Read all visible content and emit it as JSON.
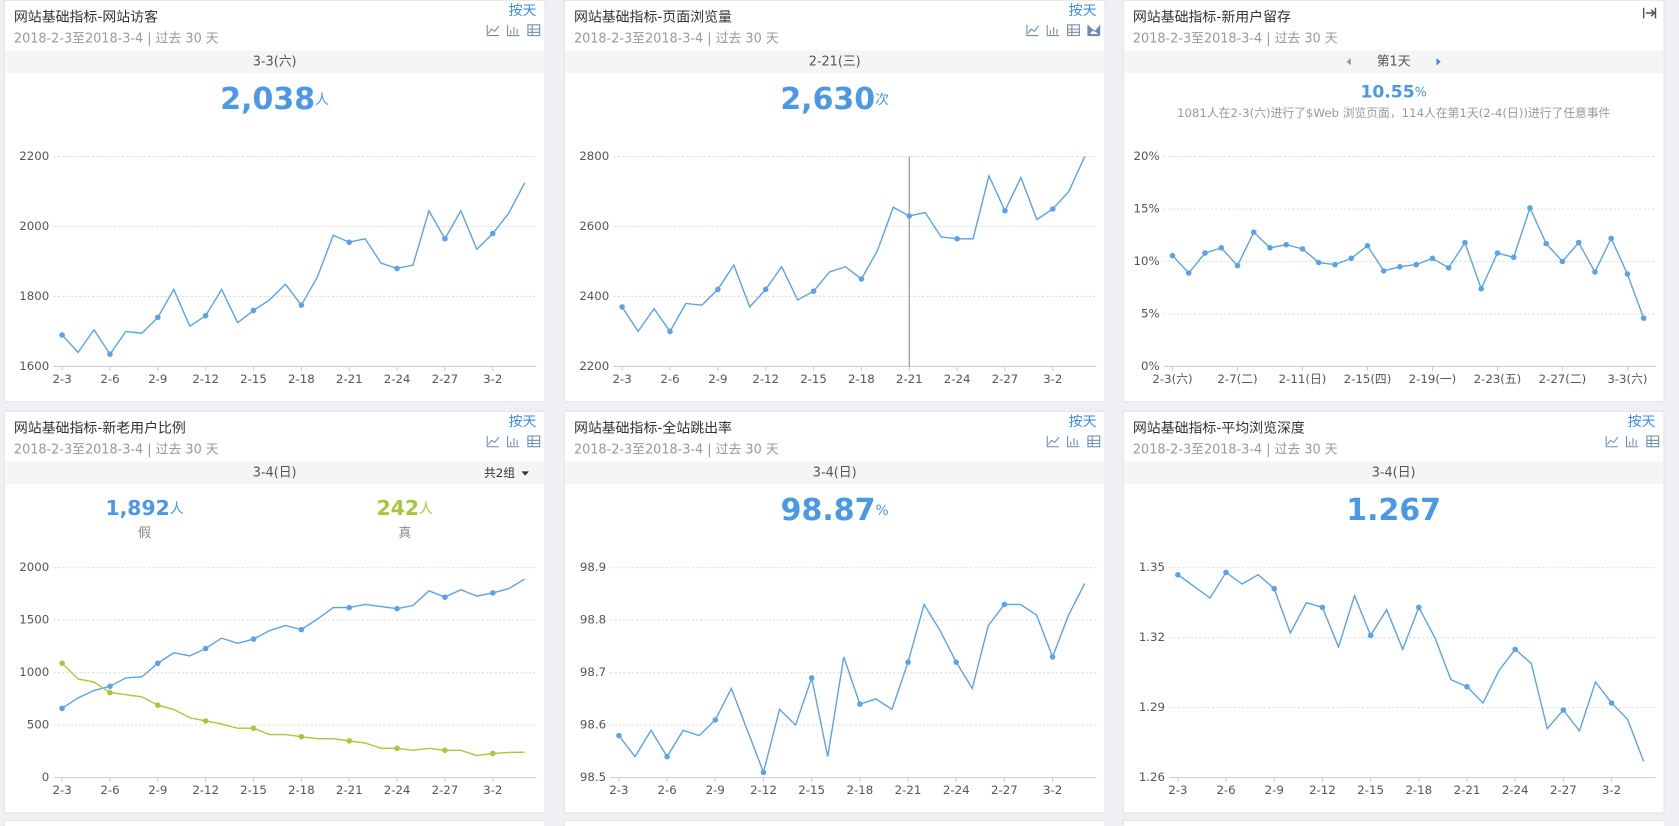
{
  "chart_data": [
    {
      "type": "line",
      "title": "网站基础指标-网站访客",
      "subtitle": "2018-2-3至2018-3-4 | 过去 30 天",
      "link": "按天",
      "header": "3-3(六)",
      "highlights": [
        {
          "value": "2,038",
          "unit": "人"
        }
      ],
      "categories": [
        "2-3",
        null,
        null,
        "2-6",
        null,
        null,
        "2-9",
        null,
        null,
        "2-12",
        null,
        null,
        "2-15",
        null,
        null,
        "2-18",
        null,
        null,
        "2-21",
        null,
        null,
        "2-24",
        null,
        null,
        "2-27",
        null,
        null,
        "3-2",
        null,
        null
      ],
      "series": [
        {
          "color": "#5ba3e8",
          "values": [
            1690,
            1640,
            1705,
            1635,
            1700,
            1695,
            1740,
            1820,
            1715,
            1745,
            1820,
            1725,
            1760,
            1790,
            1835,
            1775,
            1855,
            1975,
            1955,
            1965,
            1895,
            1880,
            1890,
            2045,
            1965,
            2045,
            1935,
            1980,
            2038,
            2125
          ]
        }
      ],
      "ylim": [
        1600,
        2200
      ],
      "yticks": [
        1600,
        1800,
        2000,
        2200
      ],
      "grid": true
    },
    {
      "type": "line",
      "title": "网站基础指标-页面浏览量",
      "subtitle": "2018-2-3至2018-3-4 | 过去 30 天",
      "link": "按天",
      "header": "2-21(三)",
      "highlights": [
        {
          "value": "2,630",
          "unit": "次"
        }
      ],
      "categories": [
        "2-3",
        null,
        null,
        "2-6",
        null,
        null,
        "2-9",
        null,
        null,
        "2-12",
        null,
        null,
        "2-15",
        null,
        null,
        "2-18",
        null,
        null,
        "2-21",
        null,
        null,
        "2-24",
        null,
        null,
        "2-27",
        null,
        null,
        "3-2",
        null,
        null
      ],
      "series": [
        {
          "color": "#5ba3e8",
          "values": [
            2370,
            2300,
            2365,
            2300,
            2380,
            2375,
            2420,
            2490,
            2370,
            2420,
            2485,
            2390,
            2415,
            2470,
            2485,
            2450,
            2530,
            2655,
            2630,
            2640,
            2570,
            2565,
            2565,
            2745,
            2645,
            2740,
            2620,
            2650,
            2700,
            2800
          ]
        }
      ],
      "ylim": [
        2200,
        2800
      ],
      "yticks": [
        2200,
        2400,
        2600,
        2800
      ],
      "grid": true
    },
    {
      "type": "line",
      "title": "网站基础指标-新用户留存",
      "subtitle": "2018-2-3至2018-3-4 | 过去 30 天",
      "header": "第1天",
      "highlights": [
        {
          "value": "10.55",
          "unit": "%"
        }
      ],
      "note": "1081人在2-3(六)进行了$Web 浏览页面，114人在第1天(2-4(日))进行了任意事件",
      "categories": [
        "2-3(六)",
        null,
        null,
        null,
        "2-7(二)",
        null,
        null,
        null,
        "2-11(日)",
        null,
        null,
        null,
        "2-15(四)",
        null,
        null,
        null,
        "2-19(一)",
        null,
        null,
        null,
        "2-23(五)",
        null,
        null,
        null,
        "2-27(二)",
        null,
        null,
        null,
        "3-3(六)",
        null
      ],
      "series": [
        {
          "color": "#5ba3e8",
          "values": [
            10.55,
            8.9,
            10.8,
            11.3,
            9.6,
            12.8,
            11.3,
            11.6,
            11.2,
            9.9,
            9.7,
            10.3,
            11.5,
            9.1,
            9.5,
            9.7,
            10.3,
            9.4,
            11.8,
            7.4,
            10.8,
            10.4,
            15.1,
            11.7,
            10.0,
            11.8,
            9.0,
            12.2,
            8.8,
            4.6
          ]
        }
      ],
      "ylim": [
        0,
        20
      ],
      "yticks": [
        {
          "value": 0,
          "label": "0%"
        },
        {
          "value": 5,
          "label": "5%"
        },
        {
          "value": 10,
          "label": "10%"
        },
        {
          "value": 15,
          "label": "15%"
        },
        {
          "value": 20,
          "label": "20%"
        }
      ],
      "grid": true
    },
    {
      "type": "line",
      "title": "网站基础指标-新老用户比例",
      "subtitle": "2018-2-3至2018-3-4 | 过去 30 天",
      "link": "按天",
      "header": "3-4(日)",
      "groups": "共2组",
      "highlights": [
        {
          "value": "1,892",
          "unit": "人"
        },
        {
          "value": "242",
          "unit": "人"
        }
      ],
      "categories": [
        "2-3",
        null,
        null,
        "2-6",
        null,
        null,
        "2-9",
        null,
        null,
        "2-12",
        null,
        null,
        "2-15",
        null,
        null,
        "2-18",
        null,
        null,
        "2-21",
        null,
        null,
        "2-24",
        null,
        null,
        "2-27",
        null,
        null,
        "3-2",
        null,
        null
      ],
      "series": [
        {
          "name": "假",
          "color": "#5ba3e8",
          "values": [
            660,
            760,
            830,
            870,
            950,
            960,
            1090,
            1190,
            1160,
            1230,
            1330,
            1280,
            1320,
            1400,
            1450,
            1410,
            1510,
            1620,
            1620,
            1650,
            1630,
            1610,
            1640,
            1780,
            1720,
            1790,
            1730,
            1760,
            1800,
            1892
          ]
        },
        {
          "name": "真",
          "color": "#a6c83c",
          "values": [
            1090,
            940,
            910,
            810,
            790,
            770,
            690,
            650,
            570,
            540,
            510,
            470,
            470,
            410,
            410,
            390,
            370,
            370,
            350,
            330,
            280,
            280,
            260,
            280,
            260,
            260,
            210,
            230,
            240,
            242
          ]
        }
      ],
      "ylim": [
        0,
        2000
      ],
      "yticks": [
        0,
        500,
        1000,
        1500,
        2000
      ],
      "grid": true
    },
    {
      "type": "line",
      "title": "网站基础指标-全站跳出率",
      "subtitle": "2018-2-3至2018-3-4 | 过去 30 天",
      "link": "按天",
      "header": "3-4(日)",
      "highlights": [
        {
          "value": "98.87",
          "unit": "%"
        }
      ],
      "categories": [
        "2-3",
        null,
        null,
        "2-6",
        null,
        null,
        "2-9",
        null,
        null,
        "2-12",
        null,
        null,
        "2-15",
        null,
        null,
        "2-18",
        null,
        null,
        "2-21",
        null,
        null,
        "2-24",
        null,
        null,
        "2-27",
        null,
        null,
        "3-2",
        null,
        null
      ],
      "series": [
        {
          "color": "#5ba3e8",
          "values": [
            98.58,
            98.54,
            98.59,
            98.54,
            98.59,
            98.58,
            98.61,
            98.67,
            98.59,
            98.51,
            98.63,
            98.6,
            98.69,
            98.54,
            98.73,
            98.64,
            98.65,
            98.63,
            98.72,
            98.83,
            98.78,
            98.72,
            98.67,
            98.79,
            98.83,
            98.83,
            98.81,
            98.73,
            98.81,
            98.87
          ]
        }
      ],
      "ylim": [
        98.5,
        98.9
      ],
      "yticks": [
        98.5,
        98.6,
        98.7,
        98.8,
        98.9
      ],
      "grid": true
    },
    {
      "type": "line",
      "title": "网站基础指标-平均浏览深度",
      "subtitle": "2018-2-3至2018-3-4 | 过去 30 天",
      "link": "按天",
      "header": "3-4(日)",
      "highlights": [
        {
          "value": "1.267"
        }
      ],
      "categories": [
        "2-3",
        null,
        null,
        "2-6",
        null,
        null,
        "2-9",
        null,
        null,
        "2-12",
        null,
        null,
        "2-15",
        null,
        null,
        "2-18",
        null,
        null,
        "2-21",
        null,
        null,
        "2-24",
        null,
        null,
        "2-27",
        null,
        null,
        "3-2",
        null,
        null
      ],
      "series": [
        {
          "color": "#5ba3e8",
          "values": [
            1.347,
            1.342,
            1.337,
            1.348,
            1.343,
            1.347,
            1.341,
            1.322,
            1.335,
            1.333,
            1.316,
            1.338,
            1.321,
            1.332,
            1.315,
            1.333,
            1.32,
            1.302,
            1.299,
            1.292,
            1.306,
            1.315,
            1.309,
            1.281,
            1.289,
            1.28,
            1.301,
            1.292,
            1.285,
            1.267
          ]
        }
      ],
      "ylim": [
        1.26,
        1.35
      ],
      "yticks": [
        1.26,
        1.29,
        1.32,
        1.35
      ],
      "grid": true
    }
  ]
}
